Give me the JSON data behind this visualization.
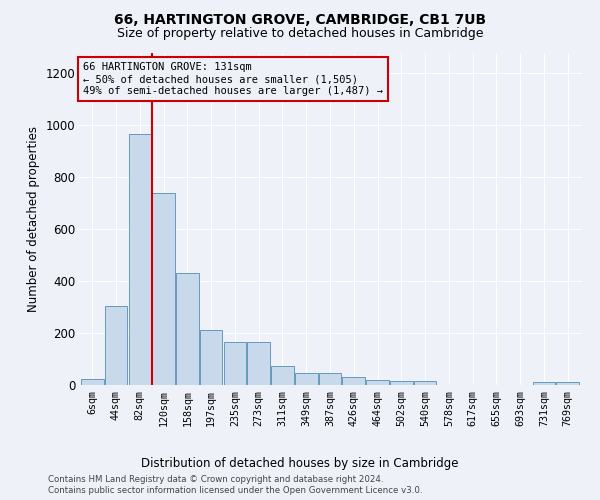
{
  "title": "66, HARTINGTON GROVE, CAMBRIDGE, CB1 7UB",
  "subtitle": "Size of property relative to detached houses in Cambridge",
  "xlabel": "Distribution of detached houses by size in Cambridge",
  "ylabel": "Number of detached properties",
  "bar_color": "#c8d9ec",
  "bar_edge_color": "#6699bb",
  "bar_categories": [
    "6sqm",
    "44sqm",
    "82sqm",
    "120sqm",
    "158sqm",
    "197sqm",
    "235sqm",
    "273sqm",
    "311sqm",
    "349sqm",
    "387sqm",
    "426sqm",
    "464sqm",
    "502sqm",
    "540sqm",
    "578sqm",
    "617sqm",
    "655sqm",
    "693sqm",
    "731sqm",
    "769sqm"
  ],
  "bar_values": [
    25,
    305,
    965,
    740,
    430,
    210,
    165,
    165,
    75,
    48,
    48,
    30,
    20,
    15,
    15,
    0,
    0,
    0,
    0,
    13,
    13
  ],
  "ylim": [
    0,
    1280
  ],
  "yticks": [
    0,
    200,
    400,
    600,
    800,
    1000,
    1200
  ],
  "vline_bar_index": 2.5,
  "property_line_label": "66 HARTINGTON GROVE: 131sqm",
  "annotation_line1": "← 50% of detached houses are smaller (1,505)",
  "annotation_line2": "49% of semi-detached houses are larger (1,487) →",
  "annotation_box_color": "#cc0000",
  "vline_color": "#cc0000",
  "footer_line1": "Contains HM Land Registry data © Crown copyright and database right 2024.",
  "footer_line2": "Contains public sector information licensed under the Open Government Licence v3.0.",
  "bg_color": "#eef2f8",
  "grid_color": "#ffffff"
}
